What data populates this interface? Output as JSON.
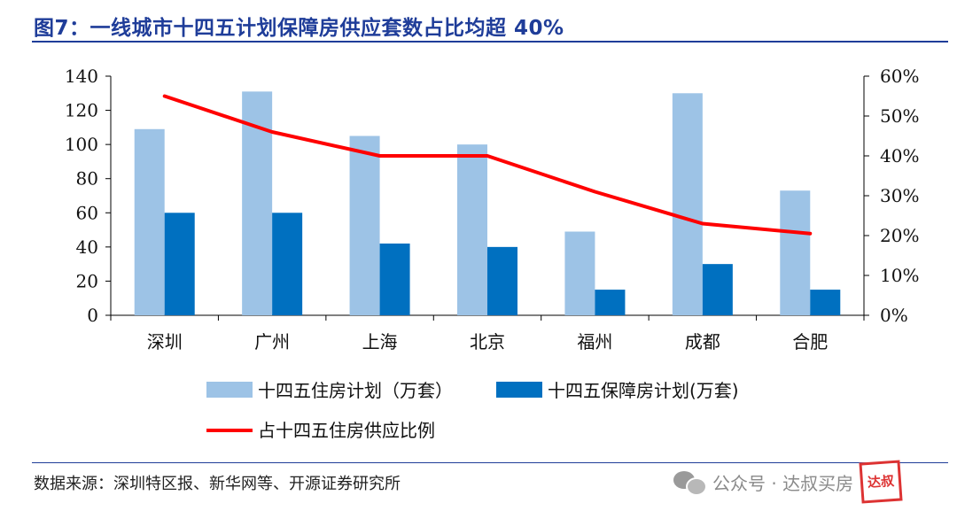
{
  "header": {
    "title": "图7：一线城市十四五计划保障房供应套数占比均超 40%"
  },
  "footer": {
    "source": "数据来源：深圳特区报、新华网等、开源证券研究所"
  },
  "watermark": {
    "text": "公众号 · 达叔买房",
    "stamp": "达叔"
  },
  "chart_data": {
    "type": "bar",
    "categories": [
      "深圳",
      "广州",
      "上海",
      "北京",
      "福州",
      "成都",
      "合肥"
    ],
    "series": [
      {
        "name": "十四五住房计划（万套）",
        "type": "bar",
        "axis": "left",
        "color": "#9dc3e6",
        "values": [
          109,
          131,
          105,
          100,
          49,
          130,
          73
        ]
      },
      {
        "name": "十四五保障房计划(万套)",
        "type": "bar",
        "axis": "left",
        "color": "#0070c0",
        "values": [
          60,
          60,
          42,
          40,
          15,
          30,
          15
        ]
      },
      {
        "name": "占十四五住房供应比例",
        "type": "line",
        "axis": "right",
        "color": "#ff0000",
        "values": [
          0.55,
          0.46,
          0.4,
          0.4,
          0.31,
          0.23,
          0.205
        ]
      }
    ],
    "ylim_left": [
      0,
      140
    ],
    "yticks_left": [
      "0",
      "20",
      "40",
      "60",
      "80",
      "100",
      "120",
      "140"
    ],
    "ylim_right": [
      0,
      0.6
    ],
    "yticks_right": [
      "0%",
      "10%",
      "20%",
      "30%",
      "40%",
      "50%",
      "60%"
    ],
    "legend_position": "bottom",
    "grid": false
  }
}
